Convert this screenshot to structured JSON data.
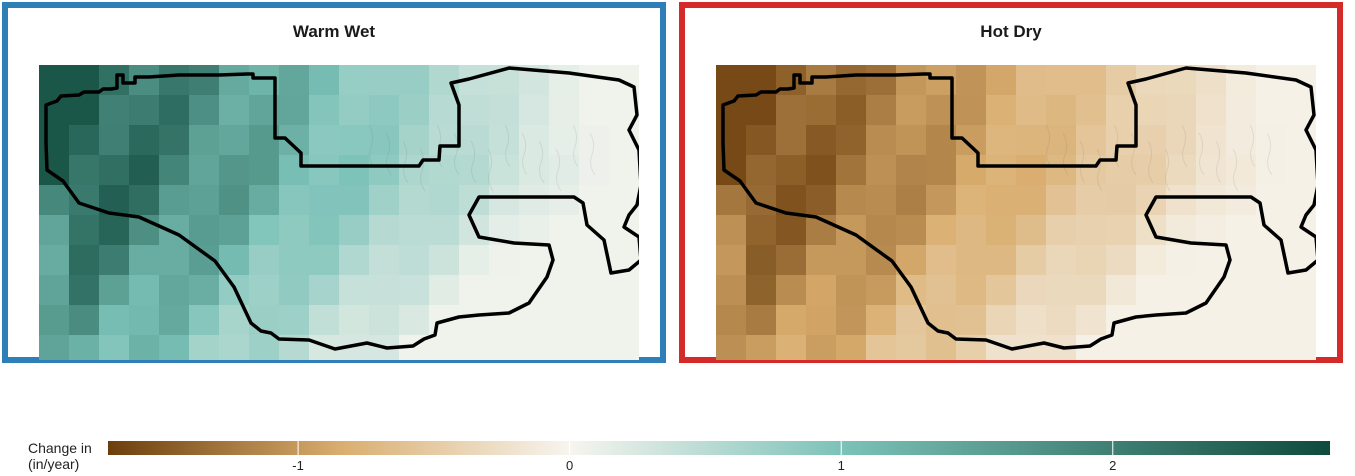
{
  "panels": [
    {
      "title": "Warm Wet",
      "border_color": "#2e7fb8",
      "ramp": "teal"
    },
    {
      "title": "Hot Dry",
      "border_color": "#d42a2a",
      "ramp": "brown"
    }
  ],
  "legend": {
    "title": "Change in\n(in/year)",
    "min": -1.7,
    "max": 2.8,
    "ticks": [
      {
        "value": -1,
        "label": "-1"
      },
      {
        "value": 0,
        "label": "0"
      },
      {
        "value": 1,
        "label": "1"
      },
      {
        "value": 2,
        "label": "2"
      }
    ],
    "colors": {
      "neg_end": "#6b3e0c",
      "mid_neg": "#d9ad6e",
      "zero": "#f7f5ef",
      "mid_pos": "#7cc2b8",
      "pos_end": "#0f4b3d"
    }
  }
}
